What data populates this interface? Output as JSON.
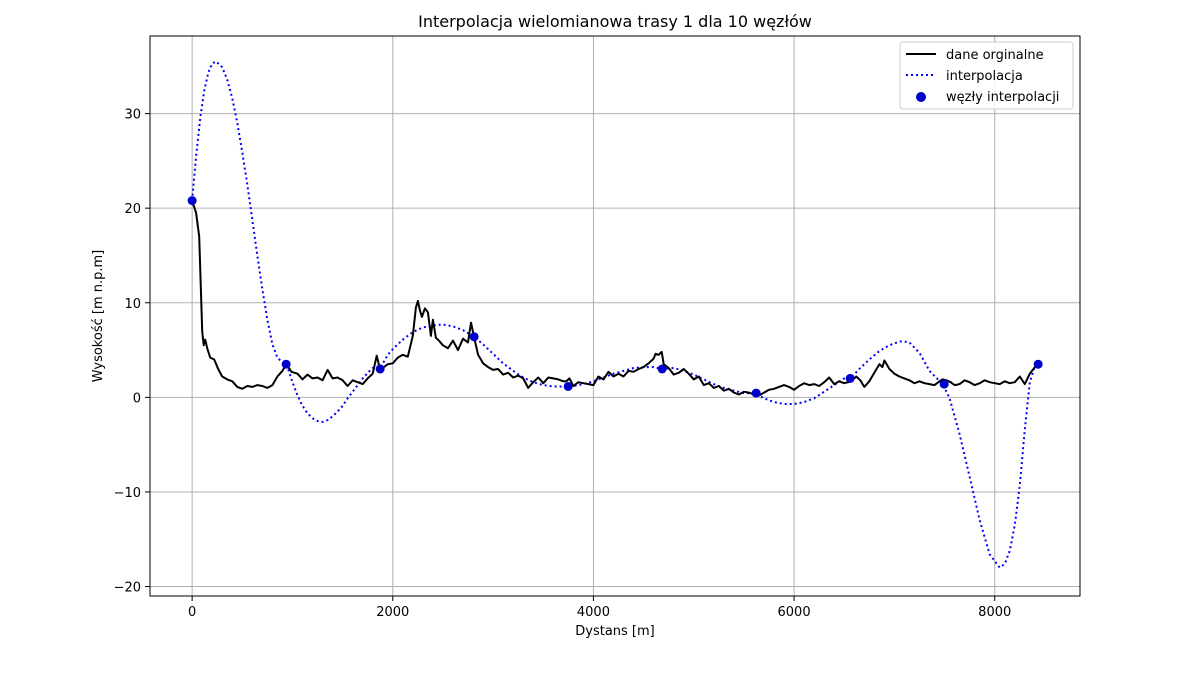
{
  "chart_data": {
    "type": "line",
    "title": "Interpolacja wielomianowa trasy 1 dla 10 węzłów",
    "xlabel": "Dystans [m]",
    "ylabel": "Wysokość [m n.p.m]",
    "xlim": [
      -420,
      8850
    ],
    "ylim": [
      -21,
      38.2
    ],
    "xticks": [
      0,
      2000,
      4000,
      6000,
      8000
    ],
    "xtick_labels": [
      "0",
      "2000",
      "4000",
      "6000",
      "8000"
    ],
    "yticks": [
      -20,
      -10,
      0,
      10,
      20,
      30
    ],
    "ytick_labels": [
      "−20",
      "−10",
      "0",
      "10",
      "20",
      "30"
    ],
    "grid": true,
    "legend_position": "top-right",
    "series": [
      {
        "name": "dane orginalne",
        "style": "solid",
        "color": "#000000",
        "x": [
          0,
          40,
          70,
          85,
          100,
          115,
          130,
          150,
          180,
          220,
          260,
          300,
          350,
          400,
          450,
          500,
          550,
          600,
          650,
          700,
          750,
          800,
          850,
          900,
          940,
          990,
          1050,
          1100,
          1150,
          1200,
          1250,
          1300,
          1350,
          1400,
          1450,
          1500,
          1550,
          1600,
          1650,
          1700,
          1750,
          1800,
          1840,
          1870,
          1900,
          1950,
          2000,
          2050,
          2100,
          2150,
          2200,
          2230,
          2250,
          2270,
          2290,
          2320,
          2350,
          2380,
          2400,
          2430,
          2460,
          2500,
          2550,
          2600,
          2650,
          2700,
          2750,
          2780,
          2810,
          2850,
          2900,
          2950,
          3000,
          3050,
          3100,
          3150,
          3200,
          3250,
          3300,
          3350,
          3400,
          3450,
          3500,
          3550,
          3600,
          3650,
          3700,
          3730,
          3760,
          3800,
          3850,
          3900,
          3950,
          4000,
          4050,
          4100,
          4150,
          4200,
          4250,
          4300,
          4350,
          4400,
          4450,
          4500,
          4550,
          4600,
          4620,
          4650,
          4680,
          4700,
          4750,
          4800,
          4850,
          4900,
          4950,
          5000,
          5050,
          5100,
          5150,
          5200,
          5250,
          5300,
          5350,
          5400,
          5450,
          5500,
          5550,
          5600,
          5650,
          5700,
          5750,
          5800,
          5850,
          5900,
          5950,
          6000,
          6050,
          6100,
          6150,
          6200,
          6250,
          6300,
          6350,
          6400,
          6450,
          6500,
          6540,
          6580,
          6620,
          6660,
          6700,
          6750,
          6800,
          6850,
          6880,
          6900,
          6950,
          7000,
          7050,
          7100,
          7150,
          7200,
          7250,
          7300,
          7350,
          7400,
          7450,
          7480,
          7520,
          7560,
          7600,
          7650,
          7700,
          7750,
          7800,
          7850,
          7900,
          7950,
          8000,
          8050,
          8100,
          8150,
          8200,
          8250,
          8300,
          8350,
          8400,
          8430
        ],
        "y": [
          20.8,
          19.5,
          17,
          12,
          7,
          5.5,
          6.1,
          5.2,
          4.2,
          4,
          3,
          2.2,
          1.9,
          1.7,
          1.1,
          0.9,
          1.2,
          1.1,
          1.3,
          1.2,
          1.0,
          1.3,
          2.2,
          2.8,
          3.5,
          2.7,
          2.5,
          1.9,
          2.4,
          2.0,
          2.1,
          1.8,
          2.9,
          2.0,
          2.1,
          1.8,
          1.2,
          1.8,
          1.6,
          1.4,
          2.0,
          2.5,
          4.4,
          3.1,
          3.1,
          3.5,
          3.6,
          4.2,
          4.5,
          4.3,
          6.5,
          9.5,
          10.2,
          9.2,
          8.5,
          9.4,
          9.0,
          6.5,
          8.2,
          6.3,
          6.0,
          5.5,
          5.2,
          6.0,
          5.0,
          6.2,
          5.8,
          7.9,
          6.4,
          4.5,
          3.6,
          3.2,
          2.9,
          3.0,
          2.4,
          2.6,
          2.1,
          2.3,
          2.0,
          1.0,
          1.6,
          2.1,
          1.5,
          2.1,
          2.0,
          1.9,
          1.7,
          1.7,
          2.0,
          1.2,
          1.6,
          1.5,
          1.4,
          1.3,
          2.2,
          1.9,
          2.7,
          2.2,
          2.5,
          2.2,
          2.8,
          2.7,
          3.0,
          3.2,
          3.6,
          4.1,
          4.6,
          4.5,
          4.8,
          3.5,
          3.1,
          2.4,
          2.6,
          3.0,
          2.5,
          1.9,
          2.2,
          1.3,
          1.5,
          1.0,
          1.2,
          0.7,
          0.9,
          0.5,
          0.3,
          0.6,
          0.5,
          0.3,
          0.2,
          0.5,
          0.8,
          0.9,
          1.1,
          1.3,
          1.1,
          0.8,
          1.2,
          1.5,
          1.3,
          1.4,
          1.2,
          1.6,
          2.1,
          1.4,
          1.7,
          1.5,
          1.6,
          1.8,
          2.2,
          1.8,
          1.1,
          1.7,
          2.6,
          3.5,
          3.2,
          3.9,
          3.0,
          2.5,
          2.2,
          2.0,
          1.8,
          1.5,
          1.7,
          1.5,
          1.4,
          1.3,
          1.7,
          1.9,
          1.8,
          1.6,
          1.3,
          1.4,
          1.8,
          1.6,
          1.3,
          1.5,
          1.8,
          1.6,
          1.5,
          1.4,
          1.7,
          1.5,
          1.6,
          2.2,
          1.4,
          2.5,
          3.2,
          3.5
        ]
      },
      {
        "name": "interpolacja",
        "style": "dotted",
        "color": "#0000ff",
        "x": [
          0,
          40,
          80,
          120,
          160,
          200,
          240,
          300,
          350,
          400,
          450,
          500,
          550,
          600,
          650,
          700,
          750,
          800,
          850,
          900,
          940,
          1000,
          1050,
          1100,
          1150,
          1200,
          1250,
          1300,
          1350,
          1400,
          1450,
          1500,
          1550,
          1600,
          1650,
          1700,
          1750,
          1800,
          1870,
          1950,
          2000,
          2100,
          2200,
          2300,
          2400,
          2500,
          2600,
          2700,
          2810,
          2900,
          3000,
          3100,
          3200,
          3300,
          3400,
          3500,
          3600,
          3700,
          3740,
          3800,
          3900,
          4000,
          4100,
          4200,
          4300,
          4400,
          4500,
          4600,
          4680,
          4800,
          4900,
          5000,
          5100,
          5200,
          5300,
          5400,
          5500,
          5610,
          5700,
          5800,
          5900,
          6000,
          6100,
          6200,
          6300,
          6400,
          6500,
          6560,
          6650,
          6750,
          6850,
          6950,
          7050,
          7100,
          7150,
          7250,
          7350,
          7480,
          7550,
          7650,
          7750,
          7850,
          7950,
          8050,
          8100,
          8150,
          8200,
          8250,
          8300,
          8350,
          8400,
          8430
        ],
        "y": [
          20.8,
          25.5,
          29.5,
          32.4,
          34.3,
          35.3,
          35.5,
          34.9,
          33.6,
          31.6,
          29.0,
          25.9,
          22.5,
          18.8,
          15.0,
          11.4,
          8.2,
          5.6,
          4.2,
          3.7,
          3.5,
          1.6,
          0.2,
          -0.9,
          -1.7,
          -2.2,
          -2.5,
          -2.6,
          -2.4,
          -2.0,
          -1.5,
          -0.9,
          -0.1,
          0.6,
          1.3,
          2.0,
          2.6,
          3.1,
          3.0,
          4.5,
          5.1,
          6.1,
          6.9,
          7.4,
          7.6,
          7.7,
          7.5,
          7.1,
          6.4,
          5.6,
          4.6,
          3.6,
          2.8,
          2.1,
          1.6,
          1.3,
          1.15,
          1.15,
          1.15,
          1.2,
          1.4,
          1.7,
          2.1,
          2.5,
          2.8,
          3.1,
          3.2,
          3.2,
          3.0,
          3.1,
          2.8,
          2.4,
          1.9,
          1.4,
          1.0,
          0.7,
          0.45,
          0.45,
          -0.1,
          -0.5,
          -0.7,
          -0.7,
          -0.5,
          -0.1,
          0.6,
          1.3,
          2.0,
          2.0,
          3.0,
          4.0,
          4.9,
          5.5,
          5.9,
          5.9,
          5.8,
          4.7,
          2.8,
          1.4,
          -0.1,
          -3.9,
          -8.4,
          -13.0,
          -16.6,
          -18.0,
          -17.6,
          -16.2,
          -13.5,
          -9.3,
          -3.4,
          1.6,
          3.3,
          3.5
        ]
      },
      {
        "name": "węzły interpolacji",
        "style": "markers",
        "color": "#0000cc",
        "x": [
          0,
          937,
          1874,
          2811,
          3748,
          4685,
          5622,
          6559,
          7496,
          8433
        ],
        "y": [
          20.8,
          3.5,
          3.0,
          6.4,
          1.15,
          3.0,
          0.45,
          2.0,
          1.4,
          3.5
        ]
      }
    ]
  }
}
